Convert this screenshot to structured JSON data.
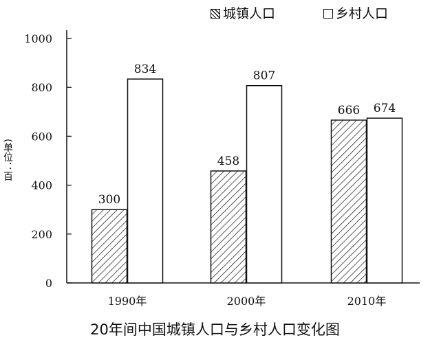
{
  "chart_data": {
    "type": "bar",
    "title": "20年间中国城镇人口与乡村人口变化图",
    "ylabel": "(单位：百万)",
    "categories": [
      "1990年",
      "2000年",
      "2010年"
    ],
    "series": [
      {
        "name": "城镇人口",
        "values": [
          300,
          458,
          666
        ],
        "pattern": "hatched"
      },
      {
        "name": "乡村人口",
        "values": [
          834,
          807,
          674
        ],
        "pattern": "solid-white"
      }
    ],
    "ylim": [
      0,
      1000
    ],
    "yticks": [
      "0",
      "200",
      "400",
      "600",
      "800",
      "1000"
    ],
    "grid": false,
    "legend": "top-right"
  }
}
